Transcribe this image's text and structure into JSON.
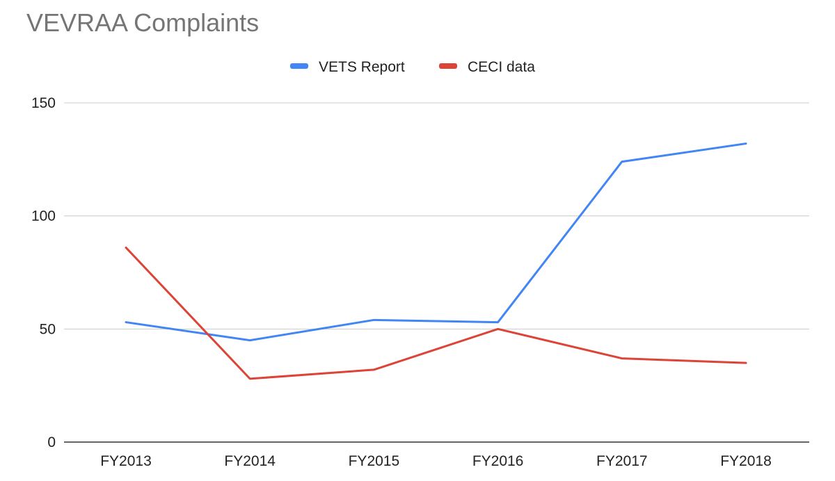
{
  "chart_data": {
    "type": "line",
    "title": "VEVRAA Complaints",
    "xlabel": "",
    "ylabel": "",
    "categories": [
      "FY2013",
      "FY2014",
      "FY2015",
      "FY2016",
      "FY2017",
      "FY2018"
    ],
    "series": [
      {
        "name": "VETS Report",
        "color": "#4285f4",
        "values": [
          53,
          45,
          54,
          53,
          124,
          132
        ]
      },
      {
        "name": "CECI data",
        "color": "#db4437",
        "values": [
          86,
          28,
          32,
          50,
          37,
          35
        ]
      }
    ],
    "ylim": [
      0,
      150
    ],
    "yticks": [
      0,
      50,
      100,
      150
    ],
    "grid": true,
    "legend_position": "top-center"
  }
}
